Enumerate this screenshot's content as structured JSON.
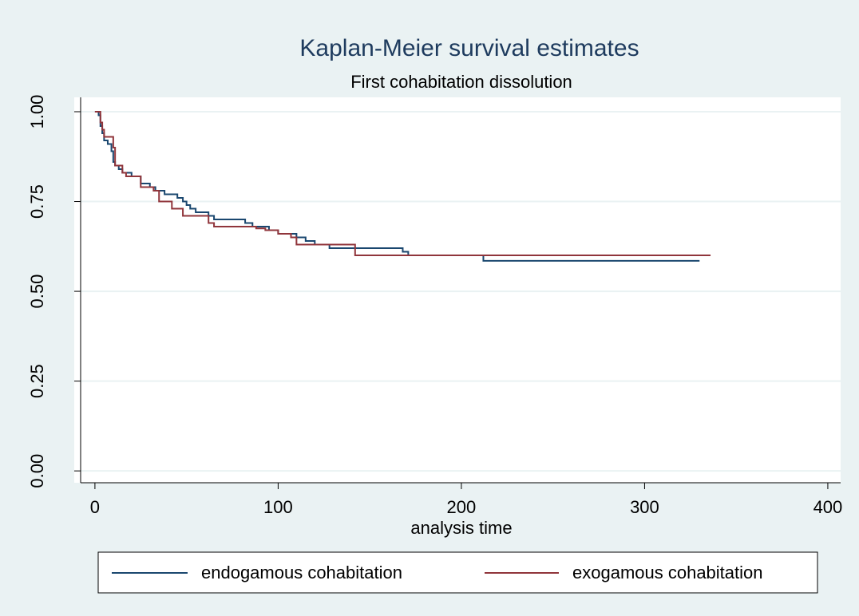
{
  "chart_data": {
    "type": "step",
    "title": "Kaplan-Meier survival estimates",
    "subtitle": "First cohabitation dissolution",
    "x_label": "analysis time",
    "xlim": [
      -7.8,
      407
    ],
    "ylim": [
      -0.033,
      1.04
    ],
    "xticks": [
      0,
      100,
      200,
      300,
      400
    ],
    "yticks": [
      {
        "value": 0,
        "label": "0.00"
      },
      {
        "value": 0.25,
        "label": "0.25"
      },
      {
        "value": 0.5,
        "label": "0.50"
      },
      {
        "value": 0.75,
        "label": "0.75"
      },
      {
        "value": 1,
        "label": "1.00"
      }
    ],
    "grid": true,
    "legend": "bottom",
    "series": [
      {
        "name": "endogamous cohabitation",
        "color": "#1a476f",
        "x": [
          0,
          2,
          3,
          4,
          5,
          7,
          9,
          10,
          11,
          13,
          15,
          20,
          25,
          30,
          33,
          38,
          45,
          48,
          50,
          52,
          55,
          62,
          65,
          82,
          86,
          95,
          100,
          110,
          115,
          120,
          128,
          168,
          171,
          212,
          330
        ],
        "values": [
          1.0,
          0.99,
          0.96,
          0.94,
          0.92,
          0.91,
          0.89,
          0.86,
          0.85,
          0.84,
          0.83,
          0.82,
          0.8,
          0.79,
          0.78,
          0.77,
          0.76,
          0.75,
          0.74,
          0.73,
          0.72,
          0.71,
          0.7,
          0.69,
          0.68,
          0.67,
          0.66,
          0.65,
          0.64,
          0.63,
          0.62,
          0.61,
          0.6,
          0.585,
          0.585
        ]
      },
      {
        "name": "exogamous cohabitation",
        "color": "#90353b",
        "x": [
          0,
          3,
          4,
          5,
          10,
          11,
          15,
          17,
          25,
          32,
          35,
          42,
          48,
          62,
          65,
          88,
          93,
          100,
          107,
          110,
          142,
          336
        ],
        "values": [
          1.0,
          0.97,
          0.95,
          0.93,
          0.9,
          0.85,
          0.83,
          0.82,
          0.79,
          0.78,
          0.75,
          0.73,
          0.71,
          0.69,
          0.68,
          0.675,
          0.67,
          0.66,
          0.65,
          0.63,
          0.6,
          0.6
        ]
      }
    ]
  }
}
